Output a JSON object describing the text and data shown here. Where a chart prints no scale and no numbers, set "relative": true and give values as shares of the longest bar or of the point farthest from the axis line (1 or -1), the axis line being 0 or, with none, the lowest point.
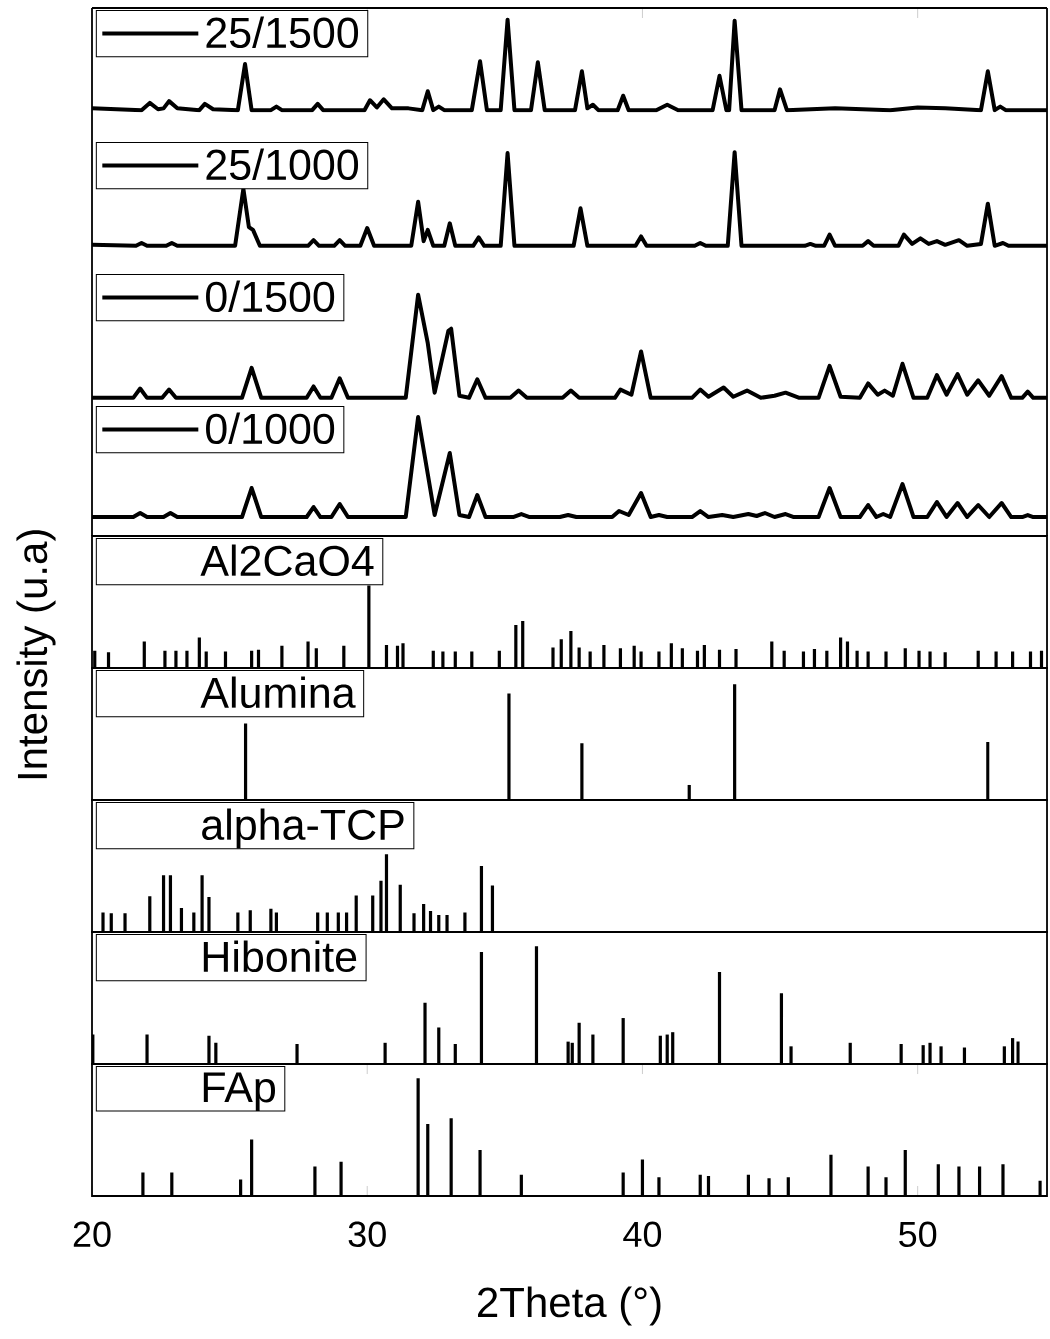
{
  "chart_data": [
    {
      "type": "line",
      "relative": true,
      "xlim": [
        20,
        54.7
      ],
      "xticks": [
        20,
        30,
        40,
        50
      ],
      "tick_labels": false,
      "legend": "top left",
      "x": [
        20,
        21.8,
        22.1,
        22.4,
        22.6,
        22.8,
        23.1,
        23.9,
        24.1,
        24.4,
        25.3,
        25.56,
        25.8,
        26.5,
        26.7,
        26.9,
        28.0,
        28.2,
        28.4,
        29.9,
        30.1,
        30.35,
        30.6,
        30.9,
        31.5,
        32.0,
        32.2,
        32.4,
        32.6,
        32.8,
        33.8,
        34.1,
        34.35,
        34.85,
        35.1,
        35.35,
        35.95,
        36.2,
        36.45,
        37.55,
        37.8,
        38.0,
        38.2,
        38.4,
        39.1,
        39.3,
        39.5,
        40.5,
        40.9,
        41.3,
        42.55,
        42.8,
        43.05,
        43.15,
        43.35,
        43.6,
        44.8,
        45.0,
        45.25,
        47.0,
        49.0,
        50.0,
        51.0,
        52.3,
        52.55,
        52.8,
        53.0,
        53.2,
        54.7
      ],
      "series": [
        {
          "name": "25/1500",
          "color": "#000000",
          "values": [
            0.02,
            0.0,
            0.08,
            0.01,
            0.02,
            0.1,
            0.02,
            0.0,
            0.07,
            0.01,
            0.0,
            0.51,
            0.0,
            0.0,
            0.04,
            0.0,
            0.0,
            0.07,
            0.0,
            0.0,
            0.11,
            0.03,
            0.12,
            0.02,
            0.02,
            0.0,
            0.21,
            0.0,
            0.04,
            0.0,
            0.0,
            0.54,
            0.0,
            0.0,
            1.0,
            0.0,
            0.0,
            0.53,
            0.0,
            0.0,
            0.43,
            0.02,
            0.06,
            0.0,
            0.0,
            0.16,
            0.0,
            0.0,
            0.06,
            0.0,
            0.0,
            0.38,
            0.0,
            0.0,
            0.99,
            0.0,
            0.0,
            0.23,
            0.0,
            0.02,
            0.0,
            0.03,
            0.02,
            0.0,
            0.43,
            0.0,
            0.04,
            0.0,
            0.0
          ]
        }
      ]
    },
    {
      "type": "line",
      "relative": true,
      "xlim": [
        20,
        54.7
      ],
      "tick_labels": false,
      "legend": "top left",
      "x": [
        20,
        21.6,
        21.8,
        22.0,
        22.7,
        22.9,
        23.1,
        25.2,
        25.5,
        25.7,
        25.85,
        26.1,
        27.85,
        28.05,
        28.25,
        28.8,
        29.0,
        29.2,
        29.75,
        30.0,
        30.25,
        31.6,
        31.85,
        32.05,
        32.2,
        32.4,
        32.8,
        33.0,
        33.2,
        33.85,
        34.05,
        34.25,
        34.85,
        35.1,
        35.35,
        37.5,
        37.75,
        38.0,
        39.75,
        39.95,
        40.15,
        41.9,
        42.1,
        42.3,
        43.1,
        43.35,
        43.6,
        45.9,
        46.1,
        46.3,
        46.6,
        46.8,
        47.0,
        48.0,
        48.2,
        48.4,
        49.3,
        49.5,
        49.8,
        50.1,
        50.4,
        50.7,
        51.0,
        51.5,
        51.8,
        52.3,
        52.55,
        52.8,
        53.1,
        53.3,
        54.7
      ],
      "series": [
        {
          "name": "25/1000",
          "color": "#000000",
          "values": [
            0.01,
            0.0,
            0.03,
            0.0,
            0.0,
            0.03,
            0.0,
            0.0,
            0.61,
            0.2,
            0.17,
            0.0,
            0.0,
            0.06,
            0.0,
            0.0,
            0.06,
            0.0,
            0.0,
            0.19,
            0.0,
            0.0,
            0.47,
            0.05,
            0.17,
            0.0,
            0.0,
            0.24,
            0.0,
            0.0,
            0.09,
            0.0,
            0.0,
            0.99,
            0.0,
            0.0,
            0.4,
            0.0,
            0.0,
            0.1,
            0.0,
            0.0,
            0.03,
            0.0,
            0.0,
            1.0,
            0.0,
            0.0,
            0.02,
            0.0,
            0.0,
            0.12,
            0.0,
            0.0,
            0.05,
            0.0,
            0.0,
            0.12,
            0.02,
            0.08,
            0.02,
            0.05,
            0.01,
            0.06,
            0.0,
            0.02,
            0.45,
            0.0,
            0.03,
            0.0,
            0.0
          ]
        }
      ]
    },
    {
      "type": "line",
      "relative": true,
      "xlim": [
        20,
        54.7
      ],
      "tick_labels": false,
      "legend": "top left",
      "x": [
        20,
        21.5,
        21.75,
        22.0,
        22.55,
        22.8,
        23.05,
        25.45,
        25.8,
        26.15,
        27.8,
        28.05,
        28.3,
        28.7,
        29.0,
        29.3,
        31.4,
        31.85,
        32.2,
        32.45,
        32.95,
        33.05,
        33.35,
        33.7,
        34.0,
        34.3,
        35.2,
        35.5,
        35.8,
        37.1,
        37.4,
        37.7,
        39.0,
        39.2,
        39.6,
        39.95,
        40.3,
        41.8,
        42.1,
        42.4,
        42.95,
        43.3,
        43.8,
        44.3,
        44.8,
        45.2,
        45.7,
        46.4,
        46.8,
        47.2,
        47.9,
        48.2,
        48.55,
        48.8,
        49.1,
        49.45,
        49.85,
        50.35,
        50.7,
        51.05,
        51.45,
        51.8,
        52.2,
        52.6,
        53.05,
        53.4,
        53.8,
        54.0,
        54.2,
        54.7
      ],
      "series": [
        {
          "name": "0/1500",
          "color": "#000000",
          "values": [
            0.0,
            0.0,
            0.09,
            0.0,
            0.0,
            0.08,
            0.0,
            0.0,
            0.29,
            0.0,
            0.0,
            0.11,
            0.0,
            0.0,
            0.19,
            0.0,
            0.0,
            1.0,
            0.53,
            0.05,
            0.65,
            0.67,
            0.02,
            0.0,
            0.18,
            0.0,
            0.0,
            0.07,
            0.0,
            0.0,
            0.07,
            0.0,
            0.0,
            0.08,
            0.03,
            0.45,
            0.0,
            0.0,
            0.08,
            0.01,
            0.1,
            0.01,
            0.07,
            0.0,
            0.02,
            0.05,
            0.0,
            0.0,
            0.31,
            0.01,
            0.0,
            0.14,
            0.03,
            0.07,
            0.02,
            0.33,
            0.0,
            0.0,
            0.22,
            0.03,
            0.23,
            0.03,
            0.17,
            0.02,
            0.21,
            0.0,
            0.0,
            0.06,
            0.0,
            0.0
          ]
        }
      ]
    },
    {
      "type": "line",
      "relative": true,
      "xlim": [
        20,
        54.7
      ],
      "tick_labels": false,
      "legend": "top left",
      "x": [
        20,
        21.5,
        21.75,
        22.0,
        22.6,
        22.85,
        23.1,
        25.45,
        25.8,
        26.15,
        27.8,
        28.05,
        28.3,
        28.7,
        29.0,
        29.3,
        31.4,
        31.85,
        32.2,
        32.45,
        33.0,
        33.35,
        33.7,
        34.0,
        34.3,
        35.3,
        35.6,
        35.9,
        37.0,
        37.3,
        37.6,
        38.9,
        39.15,
        39.5,
        39.95,
        40.3,
        40.6,
        40.9,
        41.8,
        42.1,
        42.4,
        42.9,
        43.3,
        43.85,
        44.15,
        44.45,
        44.8,
        45.2,
        45.5,
        46.4,
        46.8,
        47.2,
        47.9,
        48.2,
        48.5,
        48.75,
        49.0,
        49.45,
        49.85,
        50.35,
        50.7,
        51.05,
        51.45,
        51.8,
        52.2,
        52.6,
        53.05,
        53.4,
        53.8,
        54.0,
        54.2,
        54.7
      ],
      "series": [
        {
          "name": "0/1000",
          "color": "#000000",
          "values": [
            0.0,
            0.0,
            0.04,
            0.0,
            0.0,
            0.04,
            0.0,
            0.0,
            0.29,
            0.0,
            0.0,
            0.1,
            0.0,
            0.0,
            0.13,
            0.0,
            0.0,
            1.0,
            0.43,
            0.02,
            0.64,
            0.02,
            0.0,
            0.22,
            0.0,
            0.0,
            0.03,
            0.0,
            0.0,
            0.02,
            0.0,
            0.0,
            0.06,
            0.02,
            0.24,
            0.0,
            0.02,
            0.0,
            0.0,
            0.06,
            0.0,
            0.02,
            0.0,
            0.03,
            0.01,
            0.04,
            0.0,
            0.03,
            0.0,
            0.0,
            0.29,
            0.0,
            0.0,
            0.12,
            0.0,
            0.03,
            0.0,
            0.33,
            0.0,
            0.0,
            0.15,
            0.0,
            0.14,
            0.0,
            0.12,
            0.0,
            0.14,
            0.0,
            0.0,
            0.02,
            0.0,
            0.0
          ]
        }
      ]
    },
    {
      "type": "bar",
      "relative": true,
      "xlim": [
        20,
        54.7
      ],
      "tick_labels": false,
      "legend": "top left",
      "ylabel": "Intensity (u.a)",
      "x": [
        20.1,
        20.6,
        21.9,
        22.65,
        23.05,
        23.45,
        23.9,
        24.15,
        24.85,
        25.8,
        26.05,
        26.9,
        27.85,
        28.15,
        29.15,
        30.06,
        30.7,
        31.1,
        31.3,
        32.4,
        32.75,
        33.2,
        33.8,
        34.8,
        35.4,
        35.65,
        36.75,
        37.05,
        37.4,
        37.7,
        38.1,
        38.6,
        39.2,
        39.7,
        39.95,
        40.6,
        41.05,
        41.45,
        42.0,
        42.25,
        42.8,
        43.4,
        44.7,
        45.15,
        45.85,
        46.25,
        46.7,
        47.2,
        47.45,
        47.8,
        48.2,
        48.85,
        49.55,
        50.05,
        50.45,
        51.0,
        52.2,
        52.85,
        53.45,
        54.1,
        54.5
      ],
      "series": [
        {
          "name": "Al2CaO4",
          "color": "#000000",
          "values": [
            0.21,
            0.19,
            0.32,
            0.21,
            0.21,
            0.21,
            0.37,
            0.2,
            0.2,
            0.21,
            0.22,
            0.27,
            0.32,
            0.24,
            0.27,
            1.0,
            0.28,
            0.27,
            0.3,
            0.21,
            0.2,
            0.2,
            0.2,
            0.21,
            0.52,
            0.57,
            0.25,
            0.35,
            0.45,
            0.25,
            0.2,
            0.28,
            0.24,
            0.27,
            0.2,
            0.2,
            0.3,
            0.24,
            0.21,
            0.28,
            0.22,
            0.23,
            0.32,
            0.21,
            0.2,
            0.23,
            0.21,
            0.37,
            0.32,
            0.21,
            0.2,
            0.2,
            0.24,
            0.21,
            0.2,
            0.19,
            0.21,
            0.2,
            0.2,
            0.2,
            0.21
          ]
        }
      ]
    },
    {
      "type": "bar",
      "relative": true,
      "xlim": [
        20,
        54.7
      ],
      "tick_labels": false,
      "legend": "top left",
      "x": [
        25.58,
        35.15,
        37.8,
        41.7,
        43.35,
        52.55
      ],
      "series": [
        {
          "name": "Alumina",
          "color": "#000000",
          "values": [
            0.66,
            0.92,
            0.49,
            0.13,
            1.0,
            0.5
          ]
        }
      ]
    },
    {
      "type": "bar",
      "relative": true,
      "xlim": [
        20,
        54.7
      ],
      "tick_labels": false,
      "legend": "top left",
      "x": [
        20.4,
        20.7,
        21.2,
        22.1,
        22.6,
        22.85,
        23.25,
        23.7,
        24.0,
        24.25,
        25.3,
        25.75,
        26.5,
        26.7,
        28.2,
        28.55,
        28.95,
        29.25,
        29.6,
        30.2,
        30.5,
        30.7,
        31.2,
        31.7,
        32.05,
        32.3,
        32.6,
        32.9,
        33.55,
        34.15,
        34.55
      ],
      "series": [
        {
          "name": "alpha-TCP",
          "color": "#000000",
          "values": [
            0.25,
            0.24,
            0.24,
            0.46,
            0.73,
            0.73,
            0.31,
            0.25,
            0.73,
            0.45,
            0.25,
            0.28,
            0.3,
            0.25,
            0.25,
            0.25,
            0.25,
            0.25,
            0.47,
            0.47,
            0.66,
            1.0,
            0.61,
            0.24,
            0.36,
            0.27,
            0.22,
            0.22,
            0.25,
            0.85,
            0.6
          ]
        }
      ]
    },
    {
      "type": "bar",
      "relative": true,
      "xlim": [
        20,
        54.7
      ],
      "tick_labels": false,
      "legend": "top left",
      "x": [
        20.03,
        22.0,
        24.25,
        24.5,
        27.45,
        30.65,
        32.1,
        32.6,
        33.2,
        34.15,
        36.15,
        37.3,
        37.45,
        37.7,
        38.2,
        39.3,
        40.65,
        40.9,
        41.1,
        42.8,
        45.05,
        45.4,
        47.55,
        49.4,
        50.2,
        50.45,
        50.85,
        51.7,
        53.15,
        53.45,
        53.65
      ],
      "series": [
        {
          "name": "Hibonite",
          "color": "#000000",
          "values": [
            0.25,
            0.25,
            0.24,
            0.18,
            0.17,
            0.18,
            0.52,
            0.31,
            0.17,
            0.95,
            1.0,
            0.19,
            0.18,
            0.35,
            0.25,
            0.39,
            0.24,
            0.25,
            0.27,
            0.78,
            0.6,
            0.15,
            0.18,
            0.17,
            0.16,
            0.18,
            0.15,
            0.14,
            0.15,
            0.22,
            0.19
          ]
        }
      ]
    },
    {
      "type": "bar",
      "relative": true,
      "xlim": [
        20,
        54.7
      ],
      "xticks": [
        20,
        30,
        40,
        50
      ],
      "tick_labels": "x",
      "legend": "top left",
      "xlabel": "2Theta (°)",
      "x": [
        21.85,
        22.9,
        25.4,
        25.8,
        28.1,
        29.05,
        31.85,
        32.2,
        33.05,
        34.1,
        35.6,
        39.3,
        40.0,
        40.6,
        42.1,
        42.4,
        43.85,
        44.6,
        45.3,
        46.85,
        48.2,
        48.85,
        49.55,
        50.75,
        51.5,
        52.25,
        53.1,
        54.45
      ],
      "series": [
        {
          "name": "FAp",
          "color": "#000000",
          "values": [
            0.2,
            0.2,
            0.14,
            0.48,
            0.25,
            0.29,
            1.0,
            0.61,
            0.66,
            0.39,
            0.18,
            0.2,
            0.31,
            0.16,
            0.18,
            0.17,
            0.18,
            0.15,
            0.16,
            0.35,
            0.25,
            0.16,
            0.39,
            0.27,
            0.25,
            0.25,
            0.27,
            0.13
          ]
        }
      ]
    }
  ]
}
